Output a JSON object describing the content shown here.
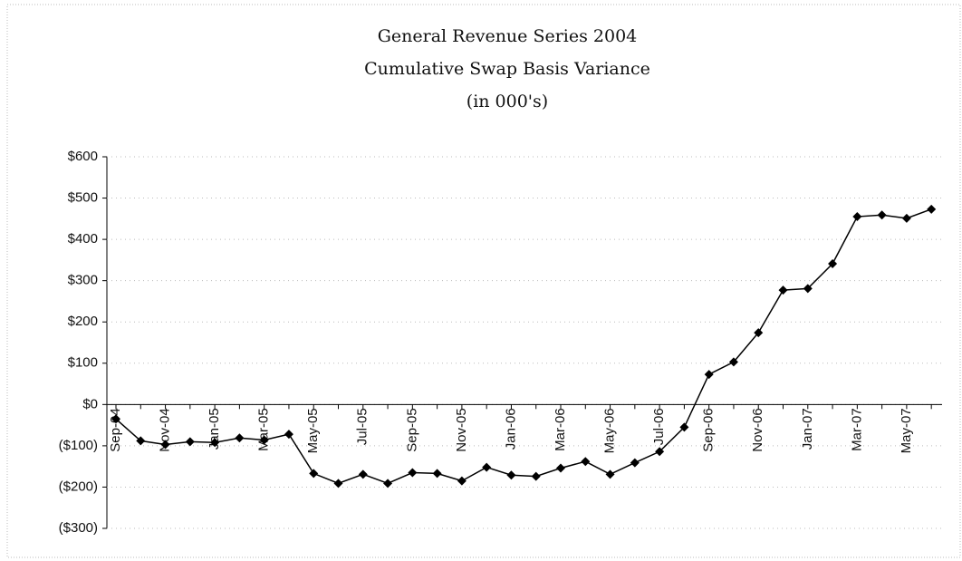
{
  "chart_data": {
    "type": "line",
    "title": "General Revenue Series 2004",
    "subtitle": "Cumulative Swap Basis Variance",
    "unit_note": "(in 000's)",
    "categories": [
      "Sep-04",
      null,
      "Nov-04",
      null,
      "Jan-05",
      null,
      "Mar-05",
      null,
      "May-05",
      null,
      "Jul-05",
      null,
      "Sep-05",
      null,
      "Nov-05",
      null,
      "Jan-06",
      null,
      "Mar-06",
      null,
      "May-06",
      null,
      "Jul-06",
      null,
      "Sep-06",
      null,
      "Nov-06",
      null,
      "Jan-07",
      null,
      "Mar-07",
      null,
      "May-07",
      null
    ],
    "series": [
      {
        "name": "Cumulative Swap Basis Variance",
        "color": "#000000",
        "values": [
          -35,
          -88,
          -97,
          -90,
          -92,
          -81,
          -86,
          -72,
          -167,
          -191,
          -169,
          -191,
          -165,
          -167,
          -185,
          -152,
          -171,
          -174,
          -154,
          -138,
          -169,
          -141,
          -114,
          -55,
          73,
          103,
          174,
          277,
          281,
          341,
          455,
          459,
          451,
          473
        ]
      }
    ],
    "ylim": [
      -300,
      600
    ],
    "yticks": [
      {
        "value": -300,
        "label": "($300)"
      },
      {
        "value": -200,
        "label": "($200)"
      },
      {
        "value": -100,
        "label": "($100)"
      },
      {
        "value": 0,
        "label": "$0"
      },
      {
        "value": 100,
        "label": "$100"
      },
      {
        "value": 200,
        "label": "$200"
      },
      {
        "value": 300,
        "label": "$300"
      },
      {
        "value": 400,
        "label": "$400"
      },
      {
        "value": 500,
        "label": "$500"
      },
      {
        "value": 600,
        "label": "$600"
      }
    ],
    "grid": true
  }
}
